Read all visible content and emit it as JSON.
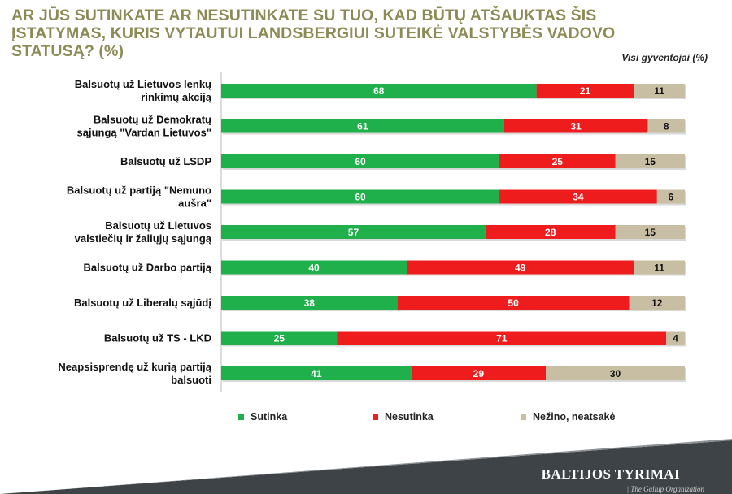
{
  "title": "AR JŪS SUTINKATE AR NESUTINKATE SU TUO, KAD BŪTŲ ATŠAUKTAS ŠIS ĮSTATYMAS, KURIS VYTAUTUI LANDSBERGIUI SUTEIKĖ VALSTYBĖS VADOVO STATUSĄ? (%)",
  "subtitle": "Visi gyventojai (%)",
  "brand": "BALTIJOS TYRIMAI",
  "brand_sub": "| The Gallup Organization",
  "chart_data": {
    "type": "bar",
    "orientation": "horizontal",
    "stacked": true,
    "categories": [
      [
        "Balsuotų už Lietuvos lenkų",
        "rinkimų akciją"
      ],
      [
        "Balsuotų už Demokratų",
        "sąjungą \"Vardan Lietuvos\""
      ],
      [
        "Balsuotų už LSDP"
      ],
      [
        "Balsuotų už partiją \"Nemuno",
        "aušra\""
      ],
      [
        "Balsuotų už Lietuvos",
        "valstiečių ir žaliųjų sąjungą"
      ],
      [
        "Balsuotų už Darbo partiją"
      ],
      [
        "Balsuotų už Liberalų sąjūdį"
      ],
      [
        "Balsuotų už TS - LKD"
      ],
      [
        "Neapsisprendę už kurią partiją",
        "balsuoti"
      ]
    ],
    "series": [
      {
        "name": "Sutinka",
        "color": "#1fb04b",
        "label_color": "#ffffff",
        "values": [
          68,
          61,
          60,
          60,
          57,
          40,
          38,
          25,
          41
        ]
      },
      {
        "name": "Nesutinka",
        "color": "#ee1c1c",
        "label_color": "#ffffff",
        "values": [
          21,
          31,
          25,
          34,
          28,
          49,
          50,
          71,
          29
        ]
      },
      {
        "name": "Nežino, neatsakė",
        "color": "#c8bea4",
        "label_color": "#111111",
        "values": [
          11,
          8,
          15,
          6,
          15,
          11,
          12,
          4,
          30
        ]
      }
    ],
    "xlim": [
      0,
      100
    ],
    "grid": false,
    "legend_position": "bottom"
  }
}
